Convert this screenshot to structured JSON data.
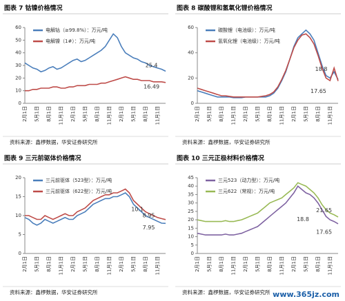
{
  "chart_data": [
    {
      "type": "line",
      "title": "图表 7 钴镍价格情况",
      "source": "资料来源：鑫椤数据，华安证券研究所",
      "categories": [
        "2月1日",
        null,
        null,
        "5月1日",
        null,
        null,
        "8月1日",
        null,
        null,
        "11月1日",
        null,
        null,
        "2月1日",
        null,
        null,
        "5月1日",
        null,
        null,
        "8月1日",
        null,
        null,
        "11月1日",
        null,
        null,
        "2月1日",
        null,
        null,
        "5月1日",
        null,
        null,
        "8月1日",
        null,
        null,
        "11月1日",
        null,
        null
      ],
      "series": [
        {
          "name": "电解钴（≥99.8%）：万元/吨",
          "color": "#4a7ebb",
          "values": [
            32,
            30,
            28,
            27,
            25,
            26,
            28,
            29,
            27,
            28,
            30,
            32,
            34,
            35,
            33,
            34,
            36,
            38,
            40,
            42,
            45,
            50,
            55,
            52,
            45,
            40,
            38,
            36,
            35,
            33,
            32,
            30,
            29,
            28,
            27,
            25.4
          ]
        },
        {
          "name": "电解镍（1#）：万元/吨",
          "color": "#be4b48",
          "values": [
            10,
            10,
            11,
            11,
            12,
            12,
            12,
            13,
            13,
            12,
            12,
            13,
            13,
            14,
            14,
            14,
            15,
            15,
            15,
            16,
            16,
            17,
            18,
            19,
            20,
            21,
            20,
            19,
            19,
            18,
            18,
            18,
            17,
            17,
            17,
            16.49
          ]
        }
      ],
      "ylim": [
        0,
        60
      ],
      "yticks": [
        0,
        10,
        20,
        30,
        40,
        50,
        60
      ],
      "grid": false,
      "annotations": [
        "25.4",
        "16.49"
      ]
    },
    {
      "type": "line",
      "title": "图表 8 碳酸锂和氢氧化锂价格情况",
      "source": "资料来源：鑫椤数据，华安证券研究所",
      "categories": [
        "2月1日",
        null,
        null,
        "5月1日",
        null,
        null,
        "8月1日",
        null,
        null,
        "11月1日",
        null,
        null,
        "2月1日",
        null,
        null,
        "5月1日",
        null,
        null,
        "8月1日",
        null,
        null,
        "11月1日",
        null,
        null,
        "2月1日",
        null,
        null,
        "5月1日",
        null,
        null,
        "8月1日",
        null,
        null,
        "11月1日",
        null,
        null
      ],
      "series": [
        {
          "name": "碳酸锂（电池级）：万元/吨",
          "color": "#4a7ebb",
          "values": [
            10,
            9,
            8,
            7,
            6,
            5,
            5,
            5,
            5,
            4.5,
            4.5,
            4.5,
            5,
            5,
            5,
            5,
            5,
            5,
            6,
            8,
            12,
            18,
            25,
            35,
            45,
            52,
            55,
            58,
            55,
            50,
            40,
            30,
            22,
            20,
            25,
            18.8
          ]
        },
        {
          "name": "氢氧化锂（电池级）：万元/吨",
          "color": "#be4b48",
          "values": [
            12,
            11,
            10,
            9,
            8,
            7,
            6,
            6,
            5.5,
            5,
            5,
            5,
            5,
            5,
            5,
            5,
            5.5,
            6,
            7,
            9,
            13,
            19,
            26,
            35,
            44,
            50,
            54,
            55,
            52,
            47,
            38,
            28,
            20,
            18,
            28,
            17.65
          ]
        }
      ],
      "ylim": [
        0,
        60
      ],
      "yticks": [
        0,
        20,
        40,
        60
      ],
      "grid": false,
      "annotations": [
        "18.8",
        "17.65"
      ]
    },
    {
      "type": "line",
      "title": "图表 9 三元前驱体价格情况",
      "source": "资料来源：鑫椤数据，华安证券研究所",
      "categories": [
        "2月1日",
        null,
        null,
        "5月1日",
        null,
        null,
        "8月1日",
        null,
        null,
        "11月1日",
        null,
        null,
        "2月1日",
        null,
        null,
        "5月1日",
        null,
        null,
        "8月1日",
        null,
        null,
        "11月1日",
        null,
        null,
        "2月1日",
        null,
        null,
        "5月1日",
        null,
        null,
        "8月1日",
        null,
        null,
        "11月1日",
        null,
        null
      ],
      "series": [
        {
          "name": "三元前驱体（523型）：万元/吨",
          "color": "#4a7ebb",
          "values": [
            9.5,
            9,
            8,
            7.5,
            8,
            9,
            8.5,
            8,
            8.5,
            9,
            9.5,
            9,
            9,
            10,
            10.5,
            11,
            12,
            13,
            13.5,
            14,
            14.5,
            14.5,
            15,
            15,
            15.5,
            16,
            15,
            13,
            12,
            11,
            10,
            9.5,
            9,
            8.5,
            8,
            7.95
          ]
        },
        {
          "name": "三元前驱体（622型）：万元/吨",
          "color": "#be4b48",
          "values": [
            10,
            10,
            9.5,
            9,
            9,
            10,
            9.5,
            9,
            9.5,
            10,
            10.5,
            10,
            10,
            11,
            11.5,
            12,
            13,
            14,
            14.5,
            15,
            15.5,
            15.5,
            16,
            16,
            16.5,
            17,
            16,
            14,
            13,
            12,
            11,
            10.5,
            10,
            9.5,
            9.2,
            8.95
          ]
        }
      ],
      "ylim": [
        0,
        20
      ],
      "yticks": [
        0,
        5,
        10,
        15,
        20
      ],
      "grid": false,
      "annotations": [
        "10.1",
        "8.95",
        "7.95"
      ]
    },
    {
      "type": "line",
      "title": "图表 10 三元正极材料价格情况",
      "source": "资料来源：鑫椤数据，华安证券研究所",
      "categories": [
        "2月1日",
        null,
        null,
        "5月1日",
        null,
        null,
        "8月1日",
        null,
        null,
        "11月1日",
        null,
        null,
        "2月1日",
        null,
        null,
        "5月1日",
        null,
        null,
        "8月1日",
        null,
        null,
        "11月1日",
        null,
        null,
        "2月1日",
        null,
        null,
        "5月1日",
        null,
        null,
        "8月1日",
        null,
        null,
        "11月1日",
        null,
        null
      ],
      "series": [
        {
          "name": "三元523（动力型）：万元/吨",
          "color": "#7e62a1",
          "values": [
            12,
            11.5,
            11,
            11,
            11,
            11,
            11,
            11.5,
            11,
            11,
            11.5,
            12,
            13,
            14,
            15,
            16,
            18,
            20,
            22,
            24,
            26,
            28,
            30,
            33,
            36,
            40,
            38,
            36,
            35,
            33,
            30,
            26,
            22,
            20,
            19,
            17.65
          ]
        },
        {
          "name": "三元622（常规）：万元/吨",
          "color": "#98b954",
          "values": [
            20,
            19.5,
            19,
            19,
            19,
            19,
            19,
            19.5,
            19,
            19,
            19.5,
            20,
            21,
            22,
            23,
            24,
            26,
            28,
            30,
            31,
            32,
            33,
            35,
            37,
            39,
            42,
            41,
            40,
            38,
            36,
            33,
            29,
            26,
            24,
            23,
            21.65
          ]
        }
      ],
      "ylim": [
        0,
        45
      ],
      "yticks": [
        0,
        5,
        10,
        15,
        20,
        25,
        30,
        35,
        40,
        45
      ],
      "grid": false,
      "annotations": [
        "21.65",
        "18.8",
        "17.65"
      ]
    }
  ],
  "watermark": "www.365jz.com"
}
